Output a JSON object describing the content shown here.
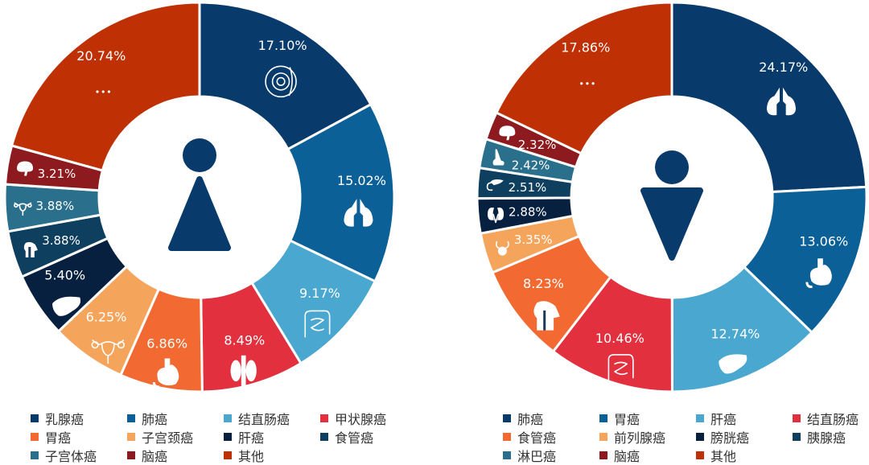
{
  "chart_data": [
    {
      "type": "pie",
      "variant": "donut",
      "center_icon": "female-icon",
      "categories": [
        "乳腺癌",
        "肺癌",
        "结直肠癌",
        "甲状腺癌",
        "胃癌",
        "子宫颈癌",
        "肝癌",
        "食管癌",
        "子宫体癌",
        "脑癌",
        "其他"
      ],
      "values": [
        17.1,
        15.02,
        9.17,
        8.49,
        6.86,
        6.25,
        5.4,
        3.88,
        3.88,
        3.21,
        20.74
      ],
      "labels": [
        "17.10%",
        "15.02%",
        "9.17%",
        "8.49%",
        "6.86%",
        "6.25%",
        "5.40%",
        "3.88%",
        "3.88%",
        "3.21%",
        "20.74%"
      ],
      "icons": [
        "breast-icon",
        "lung-icon",
        "intestine-icon",
        "thyroid-icon",
        "stomach-icon",
        "uterus-icon",
        "liver-icon",
        "throat-icon",
        "uterus-icon",
        "brain-icon",
        "ellipsis-icon"
      ],
      "colors": [
        "#083a6b",
        "#0b6098",
        "#4aa8d0",
        "#e2303f",
        "#f26a31",
        "#f5a55b",
        "#08203f",
        "#0e3f5f",
        "#2a6f8c",
        "#8c1a1e",
        "#c03005"
      ],
      "legend_placement": "bottom"
    },
    {
      "type": "pie",
      "variant": "donut",
      "center_icon": "male-icon",
      "categories": [
        "肺癌",
        "胃癌",
        "肝癌",
        "结直肠癌",
        "食管癌",
        "前列腺癌",
        "膀胱癌",
        "胰腺癌",
        "淋巴癌",
        "脑癌",
        "其他"
      ],
      "values": [
        24.17,
        13.06,
        12.74,
        10.46,
        8.23,
        3.35,
        2.88,
        2.51,
        2.42,
        2.32,
        17.86
      ],
      "labels": [
        "24.17%",
        "13.06%",
        "12.74%",
        "10.46%",
        "8.23%",
        "3.35%",
        "2.88%",
        "2.51%",
        "2.42%",
        "2.32%",
        "17.86%"
      ],
      "icons": [
        "lung-icon",
        "stomach-icon",
        "liver-icon",
        "intestine-icon",
        "throat-icon",
        "prostate-icon",
        "kidney-icon",
        "pancreas-icon",
        "nose-icon",
        "brain-icon",
        "ellipsis-icon"
      ],
      "colors": [
        "#083a6b",
        "#0b6098",
        "#4aa8d0",
        "#e2303f",
        "#f26a31",
        "#f5a55b",
        "#08203f",
        "#0e3f5f",
        "#2a6f8c",
        "#8c1a1e",
        "#c03005"
      ],
      "legend_placement": "bottom"
    }
  ]
}
